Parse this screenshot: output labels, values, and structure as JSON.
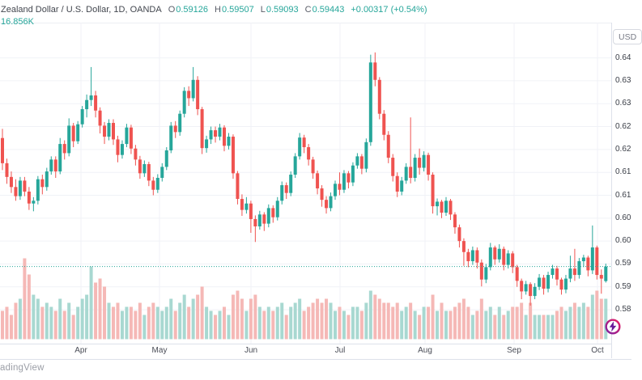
{
  "header": {
    "symbol_line": "Zealand Dollar / U.S. Dollar, 1D, OANDA",
    "o_label": "O",
    "o_value": "0.59126",
    "h_label": "H",
    "h_value": "0.59507",
    "l_label": "L",
    "l_value": "0.59093",
    "c_label": "C",
    "c_value": "0.59443",
    "change": "+0.00317 (+0.54%)",
    "volume_text": "16.856K"
  },
  "axis": {
    "currency_button": "USD"
  },
  "footer": {
    "logo_text": "adingView"
  },
  "icons": {
    "quick_trade": "lightning-bolt"
  },
  "colors": {
    "up": "#26a69a",
    "down": "#ef5350",
    "vol_up": "#a8d8d1",
    "vol_down": "#f5b8b6",
    "grid": "#f0f2f7",
    "border": "#dde1ea",
    "dotted_line": "#26a69a"
  },
  "chart_data": {
    "type": "candlestick",
    "title": "Zealand Dollar / U.S. Dollar, 1D, OANDA",
    "ylabel": "USD",
    "ylim": [
      0.5776,
      0.6477
    ],
    "y_ticks": [
      0.64,
      0.635,
      0.63,
      0.625,
      0.62,
      0.615,
      0.61,
      0.605,
      0.6,
      0.595,
      0.59,
      0.585
    ],
    "x_ticks": [
      "Apr",
      "May",
      "Jun",
      "Jul",
      "Aug",
      "Sep",
      "Oct"
    ],
    "month_gridline_x": [
      100,
      197,
      310,
      420,
      525,
      635,
      738
    ],
    "last_price": 0.59443,
    "last_volume": "16.856K",
    "candles": [
      [
        0.6225,
        0.6245,
        0.6155,
        0.617,
        0.35
      ],
      [
        0.617,
        0.618,
        0.6125,
        0.614,
        0.4
      ],
      [
        0.614,
        0.6152,
        0.6105,
        0.6118,
        0.3
      ],
      [
        0.6118,
        0.6135,
        0.6088,
        0.6098,
        0.45
      ],
      [
        0.6098,
        0.614,
        0.609,
        0.6132,
        0.5
      ],
      [
        0.6132,
        0.614,
        0.6098,
        0.6108,
        1.0
      ],
      [
        0.6108,
        0.6118,
        0.6068,
        0.6082,
        0.8
      ],
      [
        0.6082,
        0.6096,
        0.6065,
        0.6088,
        0.55
      ],
      [
        0.6088,
        0.6142,
        0.608,
        0.6135,
        0.5
      ],
      [
        0.6135,
        0.6145,
        0.6102,
        0.6118,
        0.4
      ],
      [
        0.6118,
        0.616,
        0.611,
        0.6152,
        0.45
      ],
      [
        0.6152,
        0.6185,
        0.6145,
        0.6178,
        0.4
      ],
      [
        0.6178,
        0.6185,
        0.6138,
        0.6152,
        0.35
      ],
      [
        0.6152,
        0.6225,
        0.6146,
        0.6212,
        0.5
      ],
      [
        0.6212,
        0.622,
        0.6178,
        0.6192,
        0.35
      ],
      [
        0.6192,
        0.6268,
        0.6185,
        0.6252,
        0.45
      ],
      [
        0.6252,
        0.6258,
        0.6205,
        0.6218,
        0.3
      ],
      [
        0.6218,
        0.6262,
        0.6212,
        0.6255,
        0.4
      ],
      [
        0.6255,
        0.6295,
        0.6248,
        0.6288,
        0.5
      ],
      [
        0.6288,
        0.632,
        0.627,
        0.6308,
        0.55
      ],
      [
        0.6308,
        0.638,
        0.6295,
        0.6318,
        0.9
      ],
      [
        0.6318,
        0.6328,
        0.627,
        0.6285,
        0.7
      ],
      [
        0.6285,
        0.6292,
        0.6235,
        0.6252,
        0.75
      ],
      [
        0.6252,
        0.626,
        0.6212,
        0.6228,
        0.65
      ],
      [
        0.6228,
        0.6266,
        0.622,
        0.6258,
        0.45
      ],
      [
        0.6258,
        0.6266,
        0.621,
        0.6222,
        0.4
      ],
      [
        0.6222,
        0.623,
        0.6172,
        0.6188,
        0.45
      ],
      [
        0.6188,
        0.622,
        0.618,
        0.6212,
        0.35
      ],
      [
        0.6212,
        0.6256,
        0.6205,
        0.6248,
        0.4
      ],
      [
        0.6248,
        0.6254,
        0.619,
        0.6202,
        0.4
      ],
      [
        0.6202,
        0.621,
        0.6165,
        0.6178,
        0.35
      ],
      [
        0.6178,
        0.6186,
        0.6136,
        0.6148,
        0.45
      ],
      [
        0.6148,
        0.6176,
        0.614,
        0.6168,
        0.3
      ],
      [
        0.6168,
        0.6173,
        0.612,
        0.6132,
        0.4
      ],
      [
        0.6132,
        0.614,
        0.61,
        0.6112,
        0.45
      ],
      [
        0.6112,
        0.6146,
        0.6105,
        0.6138,
        0.4
      ],
      [
        0.6138,
        0.617,
        0.613,
        0.6162,
        0.35
      ],
      [
        0.6162,
        0.6205,
        0.6155,
        0.6198,
        0.4
      ],
      [
        0.6198,
        0.626,
        0.6192,
        0.6252,
        0.5
      ],
      [
        0.6252,
        0.6262,
        0.6225,
        0.6238,
        0.35
      ],
      [
        0.6238,
        0.6285,
        0.623,
        0.6278,
        0.45
      ],
      [
        0.6278,
        0.6336,
        0.627,
        0.6328,
        0.55
      ],
      [
        0.6328,
        0.6338,
        0.6295,
        0.6312,
        0.4
      ],
      [
        0.6312,
        0.638,
        0.6305,
        0.6352,
        0.5
      ],
      [
        0.6352,
        0.636,
        0.6275,
        0.6288,
        0.55
      ],
      [
        0.6288,
        0.6293,
        0.619,
        0.6203,
        0.65
      ],
      [
        0.6203,
        0.623,
        0.6193,
        0.6222,
        0.4
      ],
      [
        0.6222,
        0.625,
        0.6212,
        0.6242,
        0.35
      ],
      [
        0.6242,
        0.625,
        0.6215,
        0.6228,
        0.3
      ],
      [
        0.6228,
        0.6256,
        0.622,
        0.6248,
        0.35
      ],
      [
        0.6248,
        0.6253,
        0.6196,
        0.6208,
        0.4
      ],
      [
        0.6208,
        0.6236,
        0.62,
        0.6228,
        0.3
      ],
      [
        0.6228,
        0.6233,
        0.6136,
        0.6148,
        0.55
      ],
      [
        0.6148,
        0.6153,
        0.608,
        0.6092,
        0.6
      ],
      [
        0.6092,
        0.6102,
        0.6055,
        0.6068,
        0.5
      ],
      [
        0.6068,
        0.6096,
        0.606,
        0.6082,
        0.35
      ],
      [
        0.6082,
        0.6088,
        0.6018,
        0.6048,
        0.5
      ],
      [
        0.6048,
        0.6056,
        0.5998,
        0.6032,
        0.55
      ],
      [
        0.6032,
        0.6066,
        0.6025,
        0.6058,
        0.4
      ],
      [
        0.6058,
        0.6063,
        0.6022,
        0.6038,
        0.35
      ],
      [
        0.6038,
        0.608,
        0.603,
        0.6072,
        0.4
      ],
      [
        0.6072,
        0.6078,
        0.604,
        0.6052,
        0.35
      ],
      [
        0.6052,
        0.6096,
        0.6045,
        0.6088,
        0.4
      ],
      [
        0.6088,
        0.613,
        0.608,
        0.6122,
        0.45
      ],
      [
        0.6122,
        0.6128,
        0.6092,
        0.6105,
        0.3
      ],
      [
        0.6105,
        0.6152,
        0.6098,
        0.6145,
        0.4
      ],
      [
        0.6145,
        0.6192,
        0.6138,
        0.6185,
        0.45
      ],
      [
        0.6185,
        0.6236,
        0.6178,
        0.6226,
        0.5
      ],
      [
        0.6226,
        0.6232,
        0.6192,
        0.6205,
        0.35
      ],
      [
        0.6205,
        0.6212,
        0.6165,
        0.6178,
        0.4
      ],
      [
        0.6178,
        0.6184,
        0.6136,
        0.6148,
        0.45
      ],
      [
        0.6148,
        0.6154,
        0.6102,
        0.6115,
        0.5
      ],
      [
        0.6115,
        0.6122,
        0.6075,
        0.609,
        0.45
      ],
      [
        0.609,
        0.6098,
        0.606,
        0.6072,
        0.5
      ],
      [
        0.6072,
        0.6106,
        0.6065,
        0.6098,
        0.45
      ],
      [
        0.6098,
        0.6132,
        0.609,
        0.6125,
        0.35
      ],
      [
        0.6125,
        0.615,
        0.61,
        0.6112,
        0.4
      ],
      [
        0.6112,
        0.6155,
        0.6105,
        0.6148,
        0.35
      ],
      [
        0.6148,
        0.6153,
        0.6115,
        0.6128,
        0.3
      ],
      [
        0.6128,
        0.6172,
        0.612,
        0.6165,
        0.4
      ],
      [
        0.6165,
        0.6192,
        0.6158,
        0.6185,
        0.4
      ],
      [
        0.6185,
        0.619,
        0.6146,
        0.6158,
        0.35
      ],
      [
        0.6158,
        0.6224,
        0.615,
        0.6216,
        0.45
      ],
      [
        0.6216,
        0.6407,
        0.6208,
        0.639,
        0.6
      ],
      [
        0.639,
        0.6412,
        0.6338,
        0.6352,
        0.55
      ],
      [
        0.6352,
        0.6358,
        0.6266,
        0.6278,
        0.5
      ],
      [
        0.6278,
        0.6286,
        0.622,
        0.6232,
        0.45
      ],
      [
        0.6232,
        0.624,
        0.617,
        0.6182,
        0.45
      ],
      [
        0.6182,
        0.619,
        0.613,
        0.6142,
        0.4
      ],
      [
        0.6142,
        0.615,
        0.6096,
        0.6108,
        0.45
      ],
      [
        0.6108,
        0.614,
        0.61,
        0.6132,
        0.35
      ],
      [
        0.6132,
        0.617,
        0.6125,
        0.6162,
        0.4
      ],
      [
        0.6162,
        0.627,
        0.6126,
        0.6138,
        0.45
      ],
      [
        0.6138,
        0.619,
        0.613,
        0.6182,
        0.35
      ],
      [
        0.6182,
        0.6202,
        0.6145,
        0.616,
        0.3
      ],
      [
        0.616,
        0.6196,
        0.6152,
        0.6188,
        0.4
      ],
      [
        0.6188,
        0.6193,
        0.6132,
        0.6145,
        0.4
      ],
      [
        0.6145,
        0.615,
        0.606,
        0.6076,
        0.55
      ],
      [
        0.6076,
        0.6093,
        0.6056,
        0.6086,
        0.35
      ],
      [
        0.6086,
        0.609,
        0.605,
        0.6062,
        0.45
      ],
      [
        0.6062,
        0.6096,
        0.6055,
        0.6088,
        0.35
      ],
      [
        0.6088,
        0.6092,
        0.6046,
        0.6058,
        0.35
      ],
      [
        0.6058,
        0.6063,
        0.6016,
        0.603,
        0.4
      ],
      [
        0.603,
        0.6036,
        0.5986,
        0.6,
        0.45
      ],
      [
        0.6,
        0.6006,
        0.5946,
        0.5976,
        0.5
      ],
      [
        0.5976,
        0.5983,
        0.5943,
        0.5956,
        0.4
      ],
      [
        0.5956,
        0.5988,
        0.5948,
        0.598,
        0.3
      ],
      [
        0.598,
        0.5986,
        0.594,
        0.5953,
        0.35
      ],
      [
        0.5953,
        0.596,
        0.5901,
        0.5916,
        0.5
      ],
      [
        0.5916,
        0.595,
        0.5908,
        0.5943,
        0.35
      ],
      [
        0.5943,
        0.5996,
        0.5936,
        0.5986,
        0.4
      ],
      [
        0.5986,
        0.599,
        0.5948,
        0.596,
        0.3
      ],
      [
        0.596,
        0.5993,
        0.5953,
        0.5983,
        0.4
      ],
      [
        0.5983,
        0.5988,
        0.5936,
        0.5948,
        0.3
      ],
      [
        0.5948,
        0.598,
        0.594,
        0.5973,
        0.35
      ],
      [
        0.5973,
        0.5978,
        0.593,
        0.5943,
        0.4
      ],
      [
        0.5943,
        0.5948,
        0.59,
        0.5913,
        0.4
      ],
      [
        0.5913,
        0.5918,
        0.5873,
        0.589,
        0.45
      ],
      [
        0.589,
        0.5913,
        0.5883,
        0.5906,
        0.3
      ],
      [
        0.5906,
        0.591,
        0.5859,
        0.588,
        0.45
      ],
      [
        0.588,
        0.5908,
        0.5873,
        0.59,
        0.3
      ],
      [
        0.59,
        0.5928,
        0.5893,
        0.592,
        0.3
      ],
      [
        0.592,
        0.5926,
        0.5883,
        0.5896,
        0.3
      ],
      [
        0.5896,
        0.5933,
        0.5888,
        0.5926,
        0.3
      ],
      [
        0.5926,
        0.5948,
        0.5918,
        0.594,
        0.3
      ],
      [
        0.594,
        0.5946,
        0.5903,
        0.5916,
        0.35
      ],
      [
        0.5916,
        0.592,
        0.5883,
        0.5894,
        0.4
      ],
      [
        0.5894,
        0.5926,
        0.5886,
        0.5918,
        0.35
      ],
      [
        0.5918,
        0.5968,
        0.591,
        0.594,
        0.4
      ],
      [
        0.594,
        0.5983,
        0.5913,
        0.5926,
        0.45
      ],
      [
        0.5926,
        0.5963,
        0.5918,
        0.5956,
        0.4
      ],
      [
        0.5956,
        0.597,
        0.5943,
        0.5964,
        0.45
      ],
      [
        0.5964,
        0.5968,
        0.5923,
        0.5936,
        0.4
      ],
      [
        0.5936,
        0.6034,
        0.5928,
        0.5986,
        0.55
      ],
      [
        0.5986,
        0.599,
        0.5916,
        0.5926,
        0.6
      ],
      [
        0.5926,
        0.5938,
        0.5885,
        0.5918,
        0.5
      ],
      [
        0.59126,
        0.59507,
        0.59093,
        0.59443,
        0.5
      ]
    ]
  }
}
